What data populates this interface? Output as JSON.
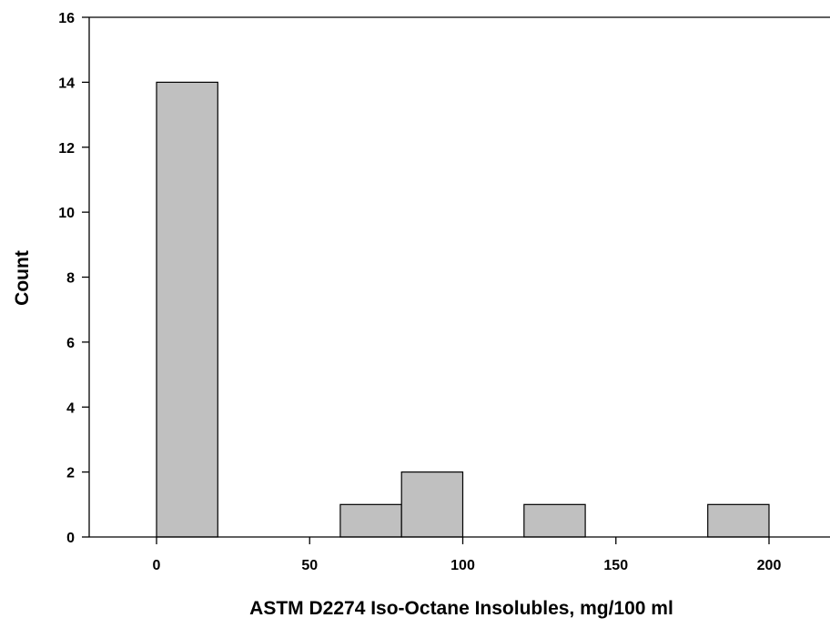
{
  "chart_data": {
    "type": "bar",
    "subtype": "histogram",
    "xlabel": "ASTM D2274 Iso-Octane Insolubles, mg/100 ml",
    "ylabel": "Count",
    "xlim": [
      -20,
      220
    ],
    "ylim": [
      0,
      16
    ],
    "xticks": [
      0,
      50,
      100,
      150,
      200
    ],
    "yticks": [
      0,
      2,
      4,
      6,
      8,
      10,
      12,
      14,
      16
    ],
    "bin_width": 20,
    "bins": [
      {
        "x_start": 0,
        "x_end": 20,
        "count": 14
      },
      {
        "x_start": 60,
        "x_end": 80,
        "count": 1
      },
      {
        "x_start": 80,
        "x_end": 100,
        "count": 2
      },
      {
        "x_start": 120,
        "x_end": 140,
        "count": 1
      },
      {
        "x_start": 180,
        "x_end": 200,
        "count": 1
      }
    ],
    "bar_fill": "#c0c0c0",
    "bar_stroke": "#000000",
    "grid": false,
    "legend": "none"
  }
}
